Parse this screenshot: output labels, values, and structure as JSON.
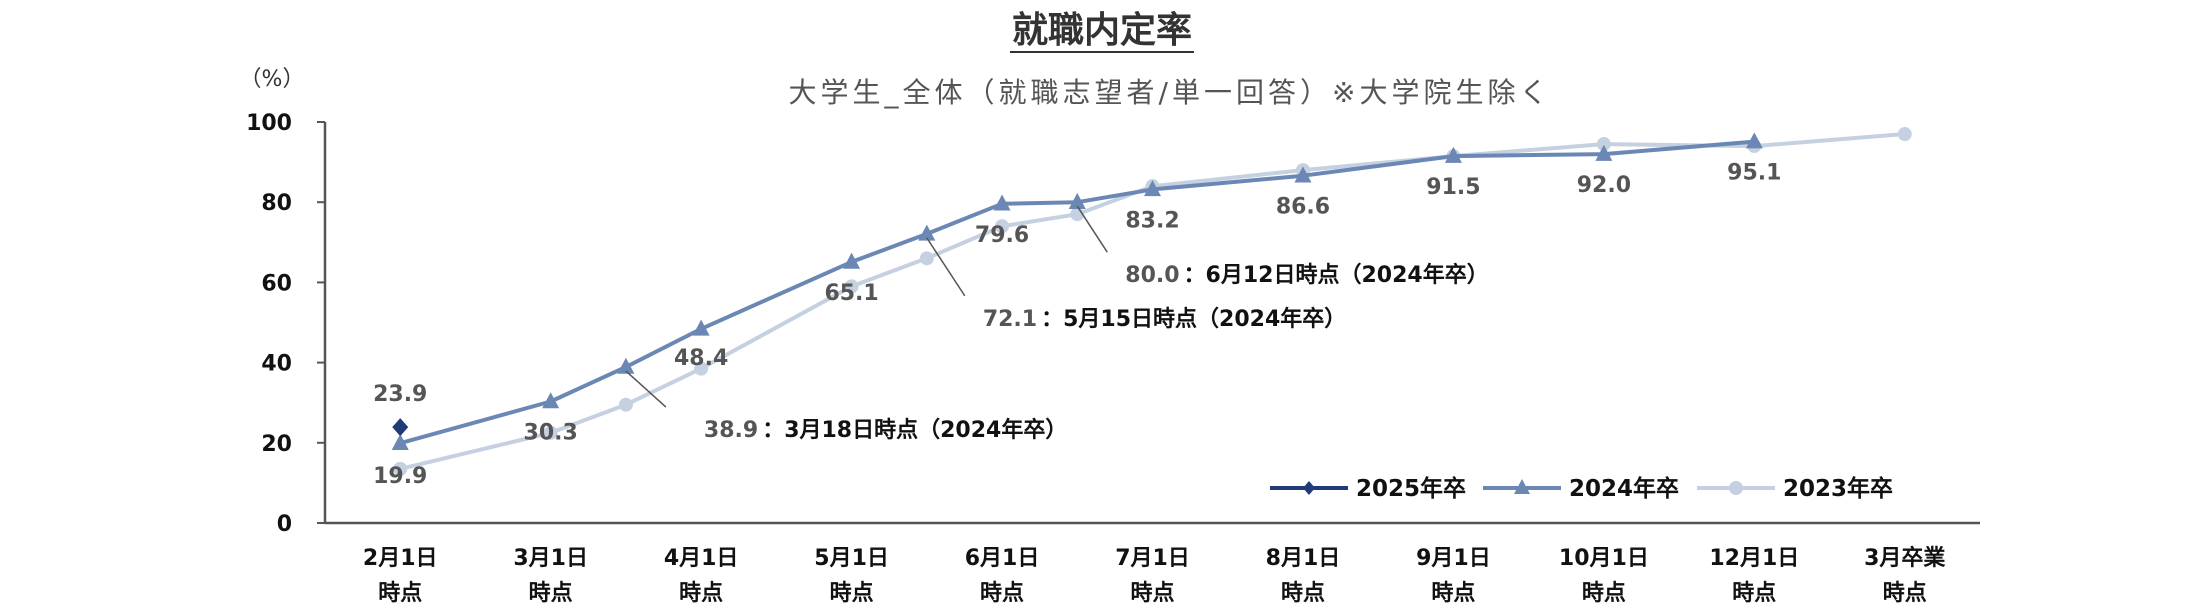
{
  "chart_data": {
    "type": "line",
    "title": "就職内定率",
    "subtitle": "大学生_全体（就職志望者/単一回答）※大学院生除く",
    "yunit": "（%）",
    "ylim": [
      0,
      100
    ],
    "yticks": [
      0,
      20,
      40,
      60,
      80,
      100
    ],
    "grid": false,
    "legend_position": "bottom-right",
    "categories": [
      [
        "2月1日",
        "時点"
      ],
      [
        "3月1日",
        "時点"
      ],
      [
        "4月1日",
        "時点"
      ],
      [
        "5月1日",
        "時点"
      ],
      [
        "6月1日",
        "時点"
      ],
      [
        "7月1日",
        "時点"
      ],
      [
        "8月1日",
        "時点"
      ],
      [
        "9月1日",
        "時点"
      ],
      [
        "10月1日",
        "時点"
      ],
      [
        "12月1日",
        "時点"
      ],
      [
        "3月卒業",
        "時点"
      ]
    ],
    "series": [
      {
        "name": "2025年卒",
        "color": "#1f3c78",
        "marker": "diamond",
        "points": [
          {
            "x": 0,
            "y": 23.9,
            "label": "23.9"
          }
        ]
      },
      {
        "name": "2024年卒",
        "color": "#6b88b5",
        "marker": "triangle",
        "points": [
          {
            "x": 0,
            "y": 19.9,
            "label": "19.9"
          },
          {
            "x": 1,
            "y": 30.3,
            "label": "30.3"
          },
          {
            "x": 1.5,
            "y": 38.9
          },
          {
            "x": 2,
            "y": 48.4,
            "label": "48.4"
          },
          {
            "x": 3,
            "y": 65.1,
            "label": "65.1"
          },
          {
            "x": 3.5,
            "y": 72.1
          },
          {
            "x": 4,
            "y": 79.6,
            "label": "79.6"
          },
          {
            "x": 4.5,
            "y": 80.0
          },
          {
            "x": 5,
            "y": 83.2,
            "label": "83.2"
          },
          {
            "x": 6,
            "y": 86.6,
            "label": "86.6"
          },
          {
            "x": 7,
            "y": 91.5,
            "label": "91.5"
          },
          {
            "x": 8,
            "y": 92.0,
            "label": "92.0"
          },
          {
            "x": 9,
            "y": 95.1,
            "label": "95.1"
          }
        ]
      },
      {
        "name": "2023年卒",
        "color": "#c5d1e0",
        "marker": "circle",
        "points": [
          {
            "x": 0,
            "y": 13.5
          },
          {
            "x": 1,
            "y": 22.5
          },
          {
            "x": 1.5,
            "y": 29.5
          },
          {
            "x": 2,
            "y": 38.5
          },
          {
            "x": 3,
            "y": 59
          },
          {
            "x": 3.5,
            "y": 66
          },
          {
            "x": 4,
            "y": 74
          },
          {
            "x": 4.5,
            "y": 77
          },
          {
            "x": 5,
            "y": 84
          },
          {
            "x": 6,
            "y": 88
          },
          {
            "x": 7,
            "y": 91.5
          },
          {
            "x": 8,
            "y": 94.5
          },
          {
            "x": 9,
            "y": 94
          },
          {
            "x": 10,
            "y": 97
          }
        ]
      }
    ],
    "annotations": [
      {
        "value": "38.9",
        "text": "：3月18日時点（2024年卒）",
        "x": 1.5,
        "y": 38.9
      },
      {
        "value": "72.1",
        "text": "：5月15日時点（2024年卒）",
        "x": 3.5,
        "y": 72.1
      },
      {
        "value": "80.0",
        "text": "：6月12日時点（2024年卒）",
        "x": 4.5,
        "y": 80.0
      }
    ]
  }
}
